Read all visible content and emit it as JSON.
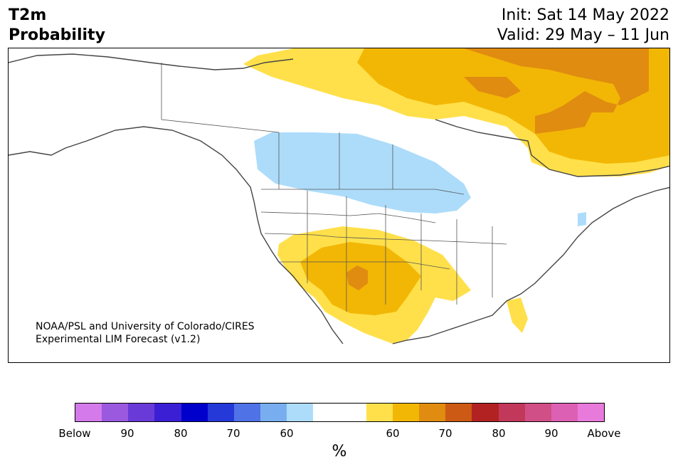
{
  "header": {
    "variable": "T2m",
    "product": "Probability",
    "init": "Init: Sat 14 May 2022",
    "valid": "Valid: 29 May – 11 Jun"
  },
  "map": {
    "credit_line1": "NOAA/PSL and University of Colorado/CIRES",
    "credit_line2": "Experimental LIM Forecast (v1.2)",
    "region": "North America"
  },
  "colorbar": {
    "unit": "%",
    "colors": [
      "#d47aea",
      "#9b59e0",
      "#6a3ad8",
      "#3a1fd4",
      "#0000cc",
      "#2538d8",
      "#4f72e6",
      "#78aef0",
      "#addcfa",
      "#ffffff",
      "#ffffff",
      "#ffe04a",
      "#f2b705",
      "#e08c10",
      "#cc5a14",
      "#b22222",
      "#c2385a",
      "#cf4f86",
      "#dc60b4",
      "#e87adb"
    ],
    "labels": [
      "Below",
      "90",
      "80",
      "70",
      "60",
      "60",
      "70",
      "80",
      "90",
      "Above"
    ]
  }
}
